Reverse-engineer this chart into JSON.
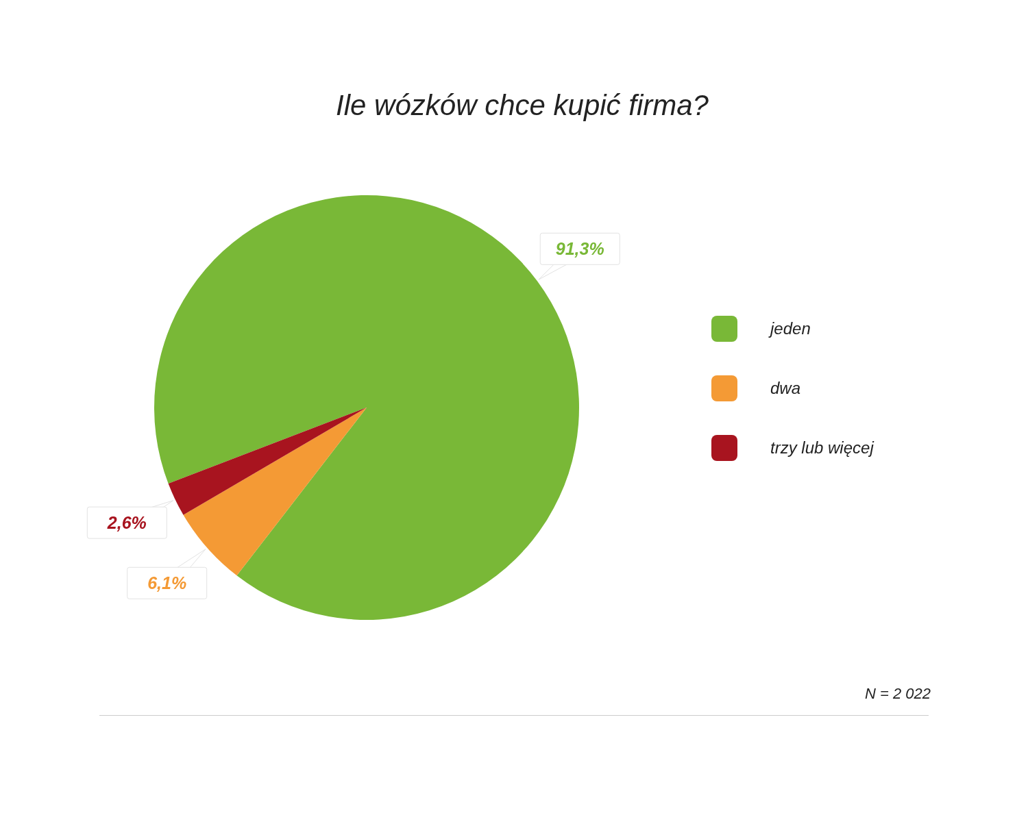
{
  "chart_data": {
    "type": "pie",
    "title": "Ile wózków chce kupić firma?",
    "categories": [
      "jeden",
      "dwa",
      "trzy lub więcej"
    ],
    "values": [
      91.3,
      6.1,
      2.6
    ],
    "colors": [
      "#79b837",
      "#f49a35",
      "#a8141f"
    ],
    "value_labels": [
      "91,3%",
      "6,1%",
      "2,6%"
    ],
    "legend": "right",
    "annotations": [
      "N = 2 022"
    ]
  }
}
